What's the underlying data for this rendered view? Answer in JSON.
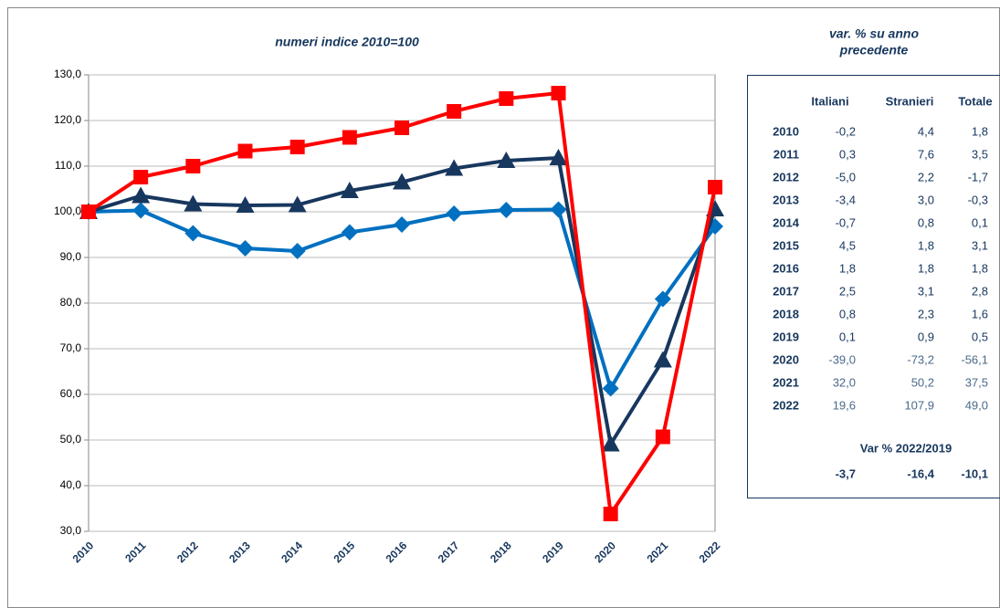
{
  "chart_data": {
    "type": "line",
    "title": "numeri indice 2010=100",
    "categories": [
      "2010",
      "2011",
      "2012",
      "2013",
      "2014",
      "2015",
      "2016",
      "2017",
      "2018",
      "2019",
      "2020",
      "2021",
      "2022"
    ],
    "series": [
      {
        "color": "#0070c0",
        "marker": "diamond",
        "values": [
          100,
          100.3,
          95.3,
          92.0,
          91.4,
          95.5,
          97.2,
          99.6,
          100.4,
          100.5,
          61.3,
          80.9,
          96.8
        ]
      },
      {
        "color": "#17375e",
        "marker": "triangle",
        "values": [
          100,
          103.5,
          101.7,
          101.4,
          101.5,
          104.6,
          106.5,
          109.5,
          111.2,
          111.8,
          49.1,
          67.5,
          100.6
        ]
      },
      {
        "color": "#ff0000",
        "marker": "square",
        "values": [
          100,
          107.6,
          110.0,
          113.3,
          114.2,
          116.3,
          118.4,
          122.0,
          124.8,
          126.0,
          33.8,
          50.7,
          105.4
        ]
      }
    ],
    "ylim": [
      30,
      130
    ],
    "yticks": [
      {
        "value": 30,
        "label": "30,0"
      },
      {
        "value": 40,
        "label": "40,0"
      },
      {
        "value": 50,
        "label": "50,0"
      },
      {
        "value": 60,
        "label": "60,0"
      },
      {
        "value": 70,
        "label": "70,0"
      },
      {
        "value": 80,
        "label": "80,0"
      },
      {
        "value": 90,
        "label": "90,0"
      },
      {
        "value": 100,
        "label": "100,0"
      },
      {
        "value": 110,
        "label": "110,0"
      },
      {
        "value": 120,
        "label": "120,0"
      },
      {
        "value": 130,
        "label": "130,0"
      }
    ],
    "grid": true
  },
  "table": {
    "title": [
      "var. % su anno",
      "precedente"
    ],
    "header": [
      "Italiani",
      "Stranieri",
      "Totale"
    ],
    "rows": [
      [
        "2010",
        "-0,2",
        "4,4",
        "1,8"
      ],
      [
        "2011",
        "0,3",
        "7,6",
        "3,5"
      ],
      [
        "2012",
        "-5,0",
        "2,2",
        "-1,7"
      ],
      [
        "2013",
        "-3,4",
        "3,0",
        "-0,3"
      ],
      [
        "2014",
        "-0,7",
        "0,8",
        "0,1"
      ],
      [
        "2015",
        "4,5",
        "1,8",
        "3,1"
      ],
      [
        "2016",
        "1,8",
        "1,8",
        "1,8"
      ],
      [
        "2017",
        "2,5",
        "3,1",
        "2,8"
      ],
      [
        "2018",
        "0,8",
        "2,3",
        "1,6"
      ],
      [
        "2019",
        "0,1",
        "0,9",
        "0,5"
      ],
      [
        "2020",
        "-39,0",
        "-73,2",
        "-56,1"
      ],
      [
        "2021",
        "32,0",
        "50,2",
        "37,5"
      ],
      [
        "2022",
        "19,6",
        "107,9",
        "49,0"
      ]
    ],
    "summary_label": "Var % 2022/2019",
    "summary": [
      "-3,7",
      "-16,4",
      "-10,1"
    ]
  }
}
